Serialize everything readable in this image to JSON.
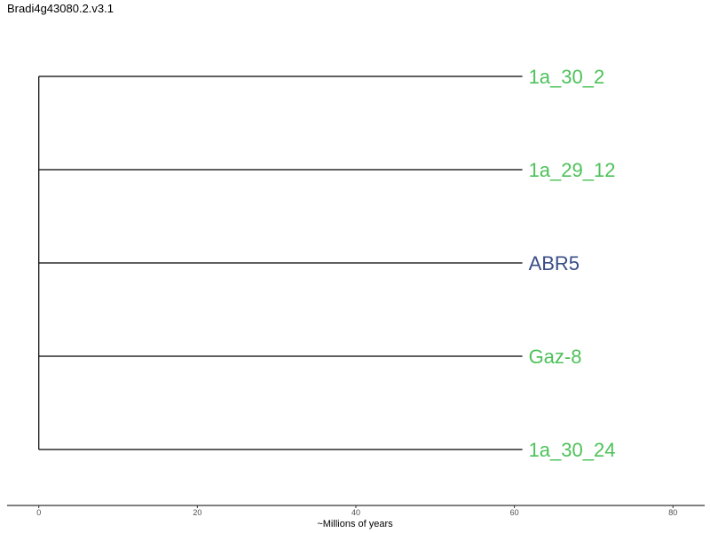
{
  "title": "Bradi4g43080.2.v3.1",
  "chart_data": {
    "type": "phylogenetic-tree",
    "xlabel": "~Millions of years",
    "xlim": [
      -4,
      84
    ],
    "x_ticks": [
      0,
      20,
      40,
      60,
      80
    ],
    "root_x": 0,
    "tips": [
      {
        "label": "1a_30_2",
        "branch_end": 61,
        "color": "#4dc25a"
      },
      {
        "label": "1a_29_12",
        "branch_end": 61,
        "color": "#4dc25a"
      },
      {
        "label": "ABR5",
        "branch_end": 61,
        "color": "#3a4e86"
      },
      {
        "label": "Gaz-8",
        "branch_end": 61,
        "color": "#4dc25a"
      },
      {
        "label": "1a_30_24",
        "branch_end": 61,
        "color": "#4dc25a"
      }
    ]
  }
}
